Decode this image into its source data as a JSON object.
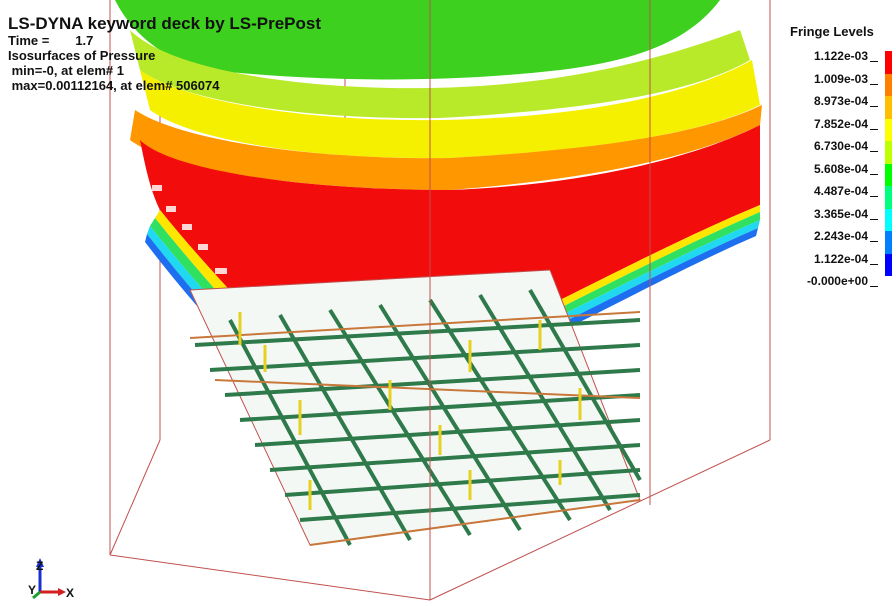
{
  "header": {
    "title": "LS-DYNA keyword deck by LS-PrePost",
    "time_label": "Time =",
    "time_value": "1.7",
    "result": "Isosurfaces of Pressure",
    "min_line": " min=-0, at elem# 1",
    "max_line": " max=0.00112164, at elem# 506074"
  },
  "legend": {
    "title": "Fringe Levels",
    "levels": [
      {
        "value": "1.122e-03",
        "color": "#ff0000"
      },
      {
        "value": "1.009e-03",
        "color": "#ff7f00"
      },
      {
        "value": "8.973e-04",
        "color": "#ffbf00"
      },
      {
        "value": "7.852e-04",
        "color": "#ffff00"
      },
      {
        "value": "6.730e-04",
        "color": "#bfff00"
      },
      {
        "value": "5.608e-04",
        "color": "#00ff00"
      },
      {
        "value": "4.487e-04",
        "color": "#00ff7f"
      },
      {
        "value": "3.365e-04",
        "color": "#00ffff"
      },
      {
        "value": "2.243e-04",
        "color": "#007fff"
      },
      {
        "value": "1.122e-04",
        "color": "#0000ff"
      },
      {
        "value": "-0.000e+00",
        "color": "#0000ff"
      }
    ]
  },
  "axes": {
    "z_label": "Z",
    "y_label": "Y",
    "x_label": "X"
  },
  "colors": {
    "box": "#c0504d",
    "rebar_green": "#2f7a4a",
    "rebar_orange": "#c8783a",
    "column_yellow": "#e6d21e"
  }
}
